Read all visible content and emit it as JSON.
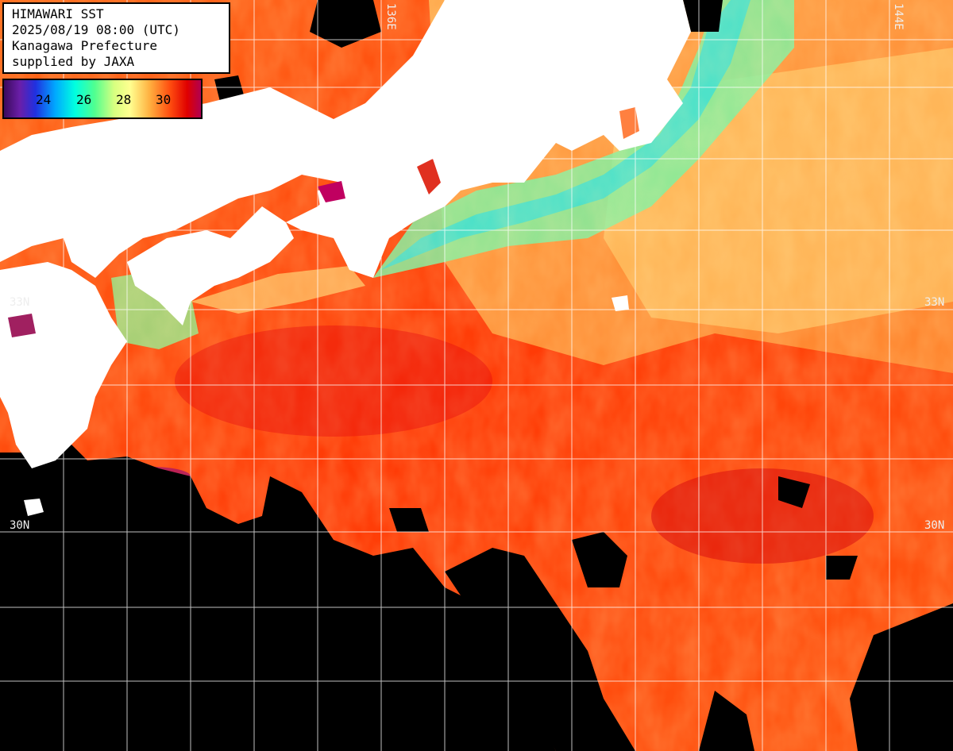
{
  "header": {
    "line1": "HIMAWARI SST",
    "line2": "2025/08/19 08:00 (UTC)",
    "line3": "Kanagawa Prefecture",
    "line4": "supplied by JAXA"
  },
  "legend": {
    "ticks": [
      "24",
      "26",
      "28",
      "30"
    ],
    "colors": [
      "#3a0a5c",
      "#5a1ea0",
      "#2030e0",
      "#00b0ff",
      "#00ffd0",
      "#40ff90",
      "#d0ff80",
      "#ffff90",
      "#ffb040",
      "#ff6010",
      "#e00000",
      "#b00050"
    ]
  },
  "grid_labels": {
    "lon_136": "136E",
    "lon_144": "144E",
    "lat_33_left": "33N",
    "lat_33_right": "33N",
    "lat_30_left": "30N",
    "lat_30_right": "30N"
  }
}
